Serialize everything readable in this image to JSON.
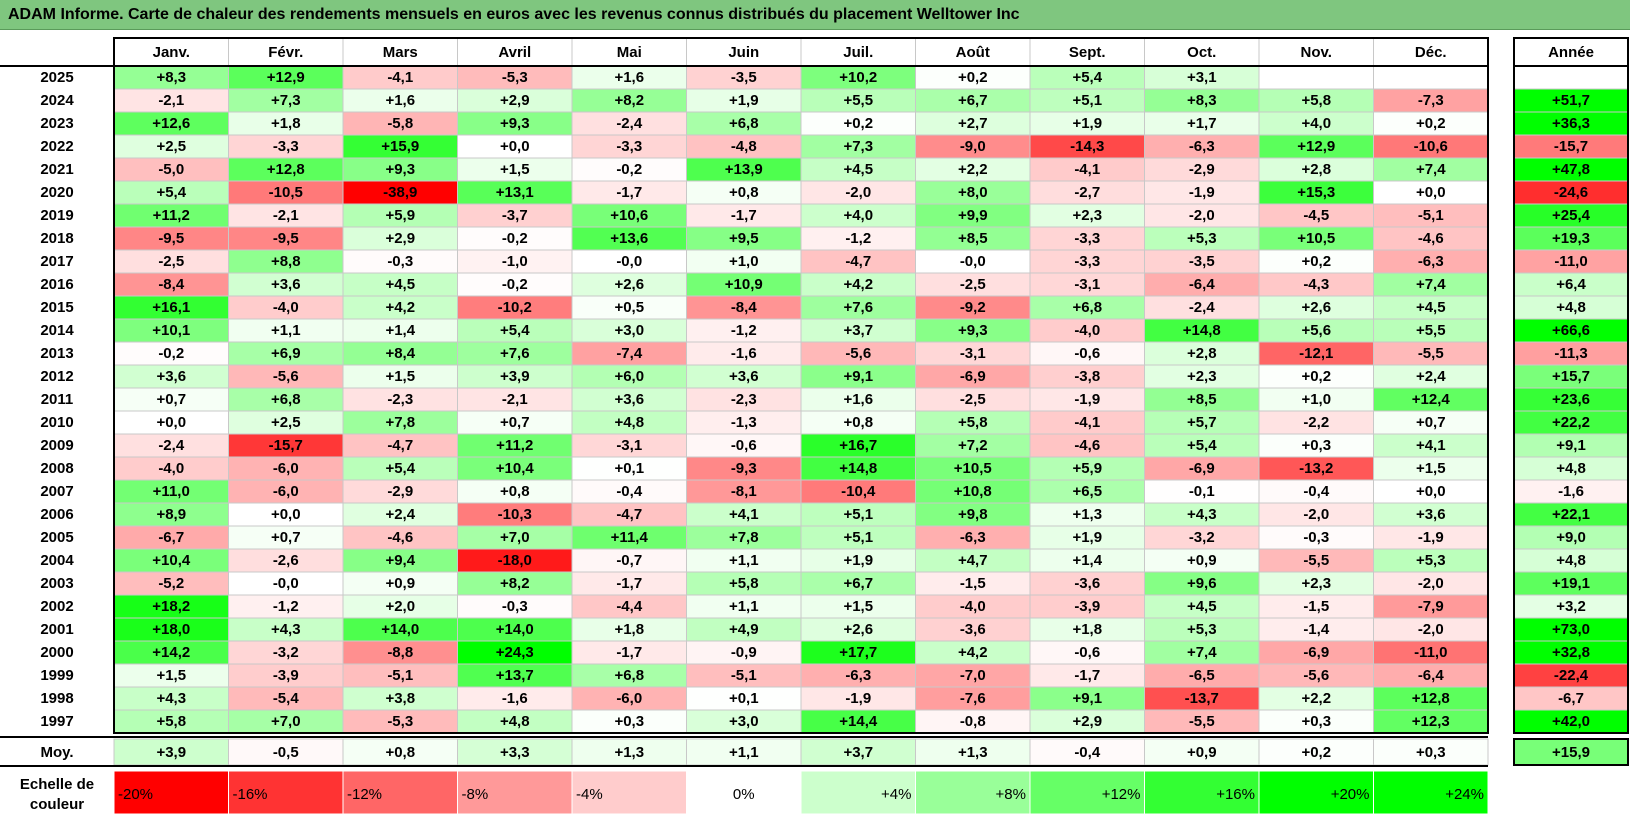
{
  "title": "ADAM Informe. Carte de chaleur des rendements mensuels en euros avec les revenus connus distribués du placement Welltower Inc",
  "chart_data": {
    "type": "heatmap",
    "months": [
      "Janv.",
      "Févr.",
      "Mars",
      "Avril",
      "Mai",
      "Juin",
      "Juil.",
      "Août",
      "Sept.",
      "Oct.",
      "Nov.",
      "Déc."
    ],
    "year_header": "Année",
    "rows": [
      {
        "year": "2025",
        "m": [
          "+8,3",
          "+12,9",
          "-4,1",
          "-5,3",
          "+1,6",
          "-3,5",
          "+10,2",
          "+0,2",
          "+5,4",
          "+3,1",
          "",
          ""
        ],
        "y": ""
      },
      {
        "year": "2024",
        "m": [
          "-2,1",
          "+7,3",
          "+1,6",
          "+2,9",
          "+8,2",
          "+1,9",
          "+5,5",
          "+6,7",
          "+5,1",
          "+8,3",
          "+5,8",
          "-7,3"
        ],
        "y": "+51,7"
      },
      {
        "year": "2023",
        "m": [
          "+12,6",
          "+1,8",
          "-5,8",
          "+9,3",
          "-2,4",
          "+6,8",
          "+0,2",
          "+2,7",
          "+1,9",
          "+1,7",
          "+4,0",
          "+0,2"
        ],
        "y": "+36,3"
      },
      {
        "year": "2022",
        "m": [
          "+2,5",
          "-3,3",
          "+15,9",
          "+0,0",
          "-3,3",
          "-4,8",
          "+7,3",
          "-9,0",
          "-14,3",
          "-6,3",
          "+12,9",
          "-10,6"
        ],
        "y": "-15,7"
      },
      {
        "year": "2021",
        "m": [
          "-5,0",
          "+12,8",
          "+9,3",
          "+1,5",
          "-0,2",
          "+13,9",
          "+4,5",
          "+2,2",
          "-4,1",
          "-2,9",
          "+2,8",
          "+7,4"
        ],
        "y": "+47,8"
      },
      {
        "year": "2020",
        "m": [
          "+5,4",
          "-10,5",
          "-38,9",
          "+13,1",
          "-1,7",
          "+0,8",
          "-2,0",
          "+8,0",
          "-2,7",
          "-1,9",
          "+15,3",
          "+0,0"
        ],
        "y": "-24,6"
      },
      {
        "year": "2019",
        "m": [
          "+11,2",
          "-2,1",
          "+5,9",
          "-3,7",
          "+10,6",
          "-1,7",
          "+4,0",
          "+9,9",
          "+2,3",
          "-2,0",
          "-4,5",
          "-5,1"
        ],
        "y": "+25,4"
      },
      {
        "year": "2018",
        "m": [
          "-9,5",
          "-9,5",
          "+2,9",
          "-0,2",
          "+13,6",
          "+9,5",
          "-1,2",
          "+8,5",
          "-3,3",
          "+5,3",
          "+10,5",
          "-4,6"
        ],
        "y": "+19,3"
      },
      {
        "year": "2017",
        "m": [
          "-2,5",
          "+8,8",
          "-0,3",
          "-1,0",
          "-0,0",
          "+1,0",
          "-4,7",
          "-0,0",
          "-3,3",
          "-3,5",
          "+0,2",
          "-6,3"
        ],
        "y": "-11,0"
      },
      {
        "year": "2016",
        "m": [
          "-8,4",
          "+3,6",
          "+4,5",
          "-0,2",
          "+2,6",
          "+10,9",
          "+4,2",
          "-2,5",
          "-3,1",
          "-6,4",
          "-4,3",
          "+7,4"
        ],
        "y": "+6,4"
      },
      {
        "year": "2015",
        "m": [
          "+16,1",
          "-4,0",
          "+4,2",
          "-10,2",
          "+0,5",
          "-8,4",
          "+7,6",
          "-9,2",
          "+6,8",
          "-2,4",
          "+2,6",
          "+4,5"
        ],
        "y": "+4,8"
      },
      {
        "year": "2014",
        "m": [
          "+10,1",
          "+1,1",
          "+1,4",
          "+5,4",
          "+3,0",
          "-1,2",
          "+3,7",
          "+9,3",
          "-4,0",
          "+14,8",
          "+5,6",
          "+5,5"
        ],
        "y": "+66,6"
      },
      {
        "year": "2013",
        "m": [
          "-0,2",
          "+6,9",
          "+8,4",
          "+7,6",
          "-7,4",
          "-1,6",
          "-5,6",
          "-3,1",
          "-0,6",
          "+2,8",
          "-12,1",
          "-5,5"
        ],
        "y": "-11,3"
      },
      {
        "year": "2012",
        "m": [
          "+3,6",
          "-5,6",
          "+1,5",
          "+3,9",
          "+6,0",
          "+3,6",
          "+9,1",
          "-6,9",
          "-3,8",
          "+2,3",
          "+0,2",
          "+2,4"
        ],
        "y": "+15,7"
      },
      {
        "year": "2011",
        "m": [
          "+0,7",
          "+6,8",
          "-2,3",
          "-2,1",
          "+3,6",
          "-2,3",
          "+1,6",
          "-2,5",
          "-1,9",
          "+8,5",
          "+1,0",
          "+12,4"
        ],
        "y": "+23,6"
      },
      {
        "year": "2010",
        "m": [
          "+0,0",
          "+2,5",
          "+7,8",
          "+0,7",
          "+4,8",
          "-1,3",
          "+0,8",
          "+5,8",
          "-4,1",
          "+5,7",
          "-2,2",
          "+0,7"
        ],
        "y": "+22,2"
      },
      {
        "year": "2009",
        "m": [
          "-2,4",
          "-15,7",
          "-4,7",
          "+11,2",
          "-3,1",
          "-0,6",
          "+16,7",
          "+7,2",
          "-4,6",
          "+5,4",
          "+0,3",
          "+4,1"
        ],
        "y": "+9,1"
      },
      {
        "year": "2008",
        "m": [
          "-4,0",
          "-6,0",
          "+5,4",
          "+10,4",
          "+0,1",
          "-9,3",
          "+14,8",
          "+10,5",
          "+5,9",
          "-6,9",
          "-13,2",
          "+1,5"
        ],
        "y": "+4,8"
      },
      {
        "year": "2007",
        "m": [
          "+11,0",
          "-6,0",
          "-2,9",
          "+0,8",
          "-0,4",
          "-8,1",
          "-10,4",
          "+10,8",
          "+6,5",
          "-0,1",
          "-0,4",
          "+0,0"
        ],
        "y": "-1,6"
      },
      {
        "year": "2006",
        "m": [
          "+8,9",
          "+0,0",
          "+2,4",
          "-10,3",
          "-4,7",
          "+4,1",
          "+5,1",
          "+9,8",
          "+1,3",
          "+4,3",
          "-2,0",
          "+3,6"
        ],
        "y": "+22,1"
      },
      {
        "year": "2005",
        "m": [
          "-6,7",
          "+0,7",
          "-4,6",
          "+7,0",
          "+11,4",
          "+7,8",
          "+5,1",
          "-6,3",
          "+1,9",
          "-3,2",
          "-0,3",
          "-1,9"
        ],
        "y": "+9,0"
      },
      {
        "year": "2004",
        "m": [
          "+10,4",
          "-2,6",
          "+9,4",
          "-18,0",
          "-0,7",
          "+1,1",
          "+1,9",
          "+4,7",
          "+1,4",
          "+0,9",
          "-5,5",
          "+5,3"
        ],
        "y": "+4,8"
      },
      {
        "year": "2003",
        "m": [
          "-5,2",
          "-0,0",
          "+0,9",
          "+8,2",
          "-1,7",
          "+5,8",
          "+6,7",
          "-1,5",
          "-3,6",
          "+9,6",
          "+2,3",
          "-2,0"
        ],
        "y": "+19,1"
      },
      {
        "year": "2002",
        "m": [
          "+18,2",
          "-1,2",
          "+2,0",
          "-0,3",
          "-4,4",
          "+1,1",
          "+1,5",
          "-4,0",
          "-3,9",
          "+4,5",
          "-1,5",
          "-7,9"
        ],
        "y": "+3,2"
      },
      {
        "year": "2001",
        "m": [
          "+18,0",
          "+4,3",
          "+14,0",
          "+14,0",
          "+1,8",
          "+4,9",
          "+2,6",
          "-3,6",
          "+1,8",
          "+5,3",
          "-1,4",
          "-2,0"
        ],
        "y": "+73,0"
      },
      {
        "year": "2000",
        "m": [
          "+14,2",
          "-3,2",
          "-8,8",
          "+24,3",
          "-1,7",
          "-0,9",
          "+17,7",
          "+4,2",
          "-0,6",
          "+7,4",
          "-6,9",
          "-11,0"
        ],
        "y": "+32,8"
      },
      {
        "year": "1999",
        "m": [
          "+1,5",
          "-3,9",
          "-5,1",
          "+13,7",
          "+6,8",
          "-5,1",
          "-6,3",
          "-7,0",
          "-1,7",
          "-6,5",
          "-5,6",
          "-6,4"
        ],
        "y": "-22,4"
      },
      {
        "year": "1998",
        "m": [
          "+4,3",
          "-5,4",
          "+3,8",
          "-1,6",
          "-6,0",
          "+0,1",
          "-1,9",
          "-7,6",
          "+9,1",
          "-13,7",
          "+2,2",
          "+12,8"
        ],
        "y": "-6,7"
      },
      {
        "year": "1997",
        "m": [
          "+5,8",
          "+7,0",
          "-5,3",
          "+4,8",
          "+0,3",
          "+3,0",
          "+14,4",
          "-0,8",
          "+2,9",
          "-5,5",
          "+0,3",
          "+12,3"
        ],
        "y": "+42,0"
      }
    ],
    "average": {
      "label": "Moy.",
      "m": [
        "+3,9",
        "-0,5",
        "+0,8",
        "+3,3",
        "+1,3",
        "+1,1",
        "+3,7",
        "+1,3",
        "-0,4",
        "+0,9",
        "+0,2",
        "+0,3"
      ],
      "y": "+15,9"
    },
    "scale_label_lines": [
      "Echelle de",
      "couleur"
    ],
    "scale": [
      {
        "label": "-20%",
        "color": "#ff0000"
      },
      {
        "label": "-16%",
        "color": "#ff3333"
      },
      {
        "label": "-12%",
        "color": "#ff6666"
      },
      {
        "label": "-8%",
        "color": "#ff9999"
      },
      {
        "label": "-4%",
        "color": "#ffcccc"
      },
      {
        "label": "0%",
        "color": "#ffffff"
      },
      {
        "label": "+4%",
        "color": "#ccffcc"
      },
      {
        "label": "+8%",
        "color": "#99ff99"
      },
      {
        "label": "+12%",
        "color": "#66ff66"
      },
      {
        "label": "+16%",
        "color": "#33ff33"
      },
      {
        "label": "+20%",
        "color": "#00ff00"
      },
      {
        "label": "+24%",
        "color": "#00ff00"
      }
    ]
  }
}
